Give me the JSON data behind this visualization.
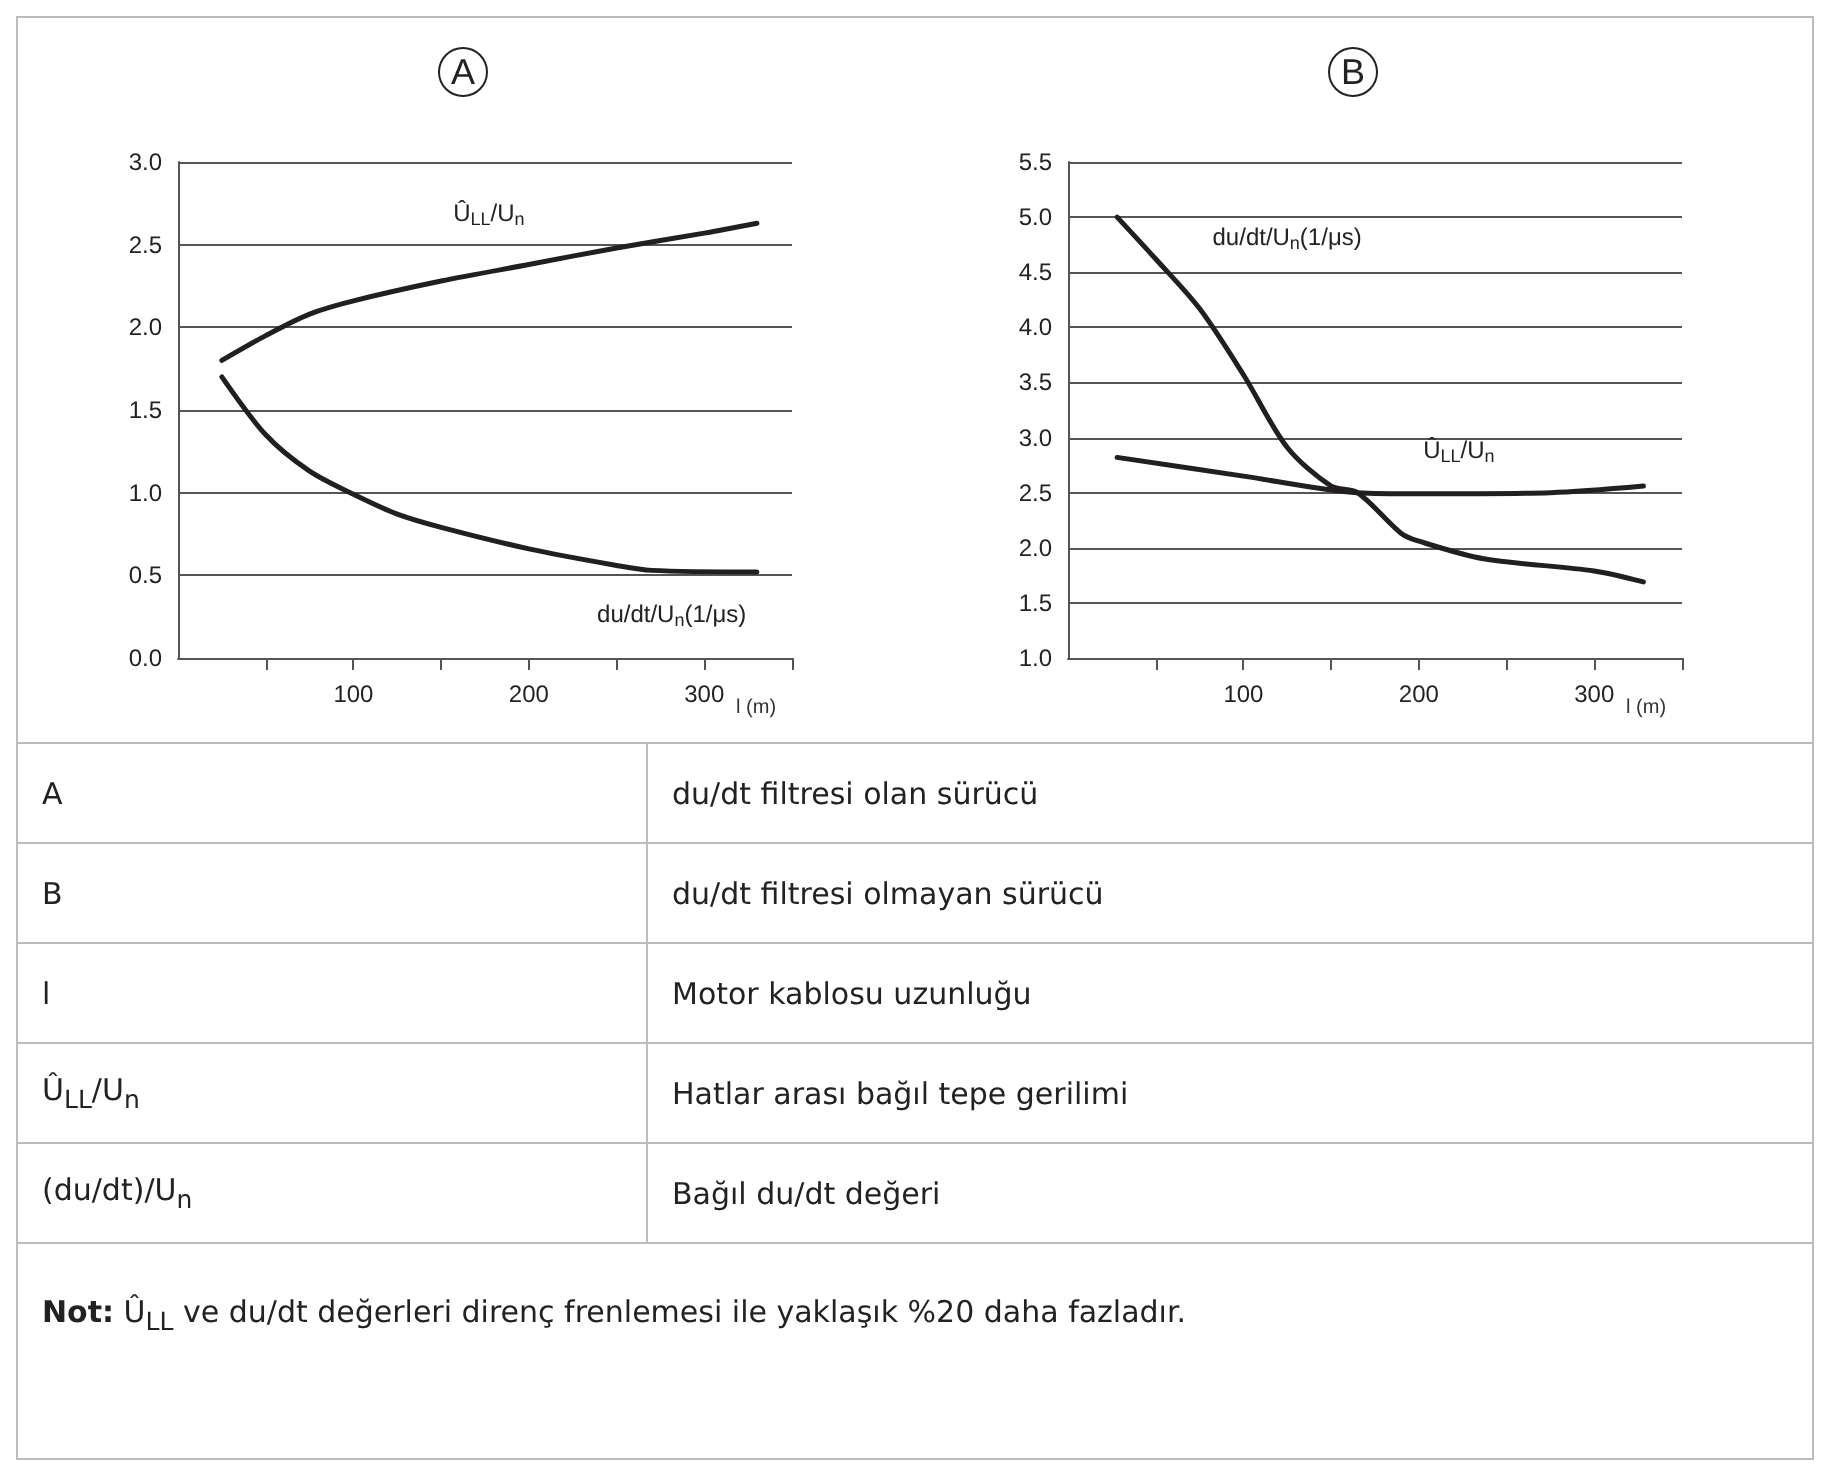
{
  "chart_data": [
    {
      "type": "line",
      "title": "A",
      "xlabel": "l (m)",
      "xlim": [
        0,
        350
      ],
      "xticks": [
        {
          "value": 50,
          "label": null
        },
        100,
        {
          "value": 150,
          "label": null
        },
        200,
        {
          "value": 250,
          "label": null
        },
        300,
        {
          "value": 350,
          "label": null
        }
      ],
      "ylim": [
        0,
        3
      ],
      "yticks": [
        {
          "value": 0,
          "label": "0.0"
        },
        {
          "value": 0.5,
          "label": "0.5"
        },
        {
          "value": 1,
          "label": "1.0"
        },
        {
          "value": 1.5,
          "label": "1.5"
        },
        {
          "value": 2,
          "label": "2.0"
        },
        {
          "value": 2.5,
          "label": "2.5"
        },
        {
          "value": 3,
          "label": "3.0"
        }
      ],
      "grid": "y",
      "marker": "none",
      "line_style": "solid",
      "series": [
        {
          "name": "Û$_{LL}$/U$_{n}$",
          "color": "#231f20",
          "x": [
            25,
            50,
            75,
            100,
            150,
            200,
            250,
            300,
            330
          ],
          "values": [
            1.8,
            1.95,
            2.08,
            2.16,
            2.28,
            2.38,
            2.48,
            2.57,
            2.63
          ]
        },
        {
          "name": "du/dt/U$_{n}$(1/μs)",
          "color": "#231f20",
          "x": [
            25,
            50,
            75,
            100,
            125,
            150,
            200,
            250,
            270,
            330
          ],
          "values": [
            1.7,
            1.35,
            1.13,
            0.99,
            0.87,
            0.79,
            0.66,
            0.56,
            0.53,
            0.52
          ]
        }
      ]
    },
    {
      "type": "line",
      "title": "B",
      "xlabel": "l (m)",
      "xlim": [
        0,
        350
      ],
      "xticks": [
        {
          "value": 50,
          "label": null
        },
        100,
        {
          "value": 150,
          "label": null
        },
        200,
        {
          "value": 250,
          "label": null
        },
        300,
        {
          "value": 350,
          "label": null
        }
      ],
      "ylim": [
        1,
        5.5
      ],
      "yticks": [
        {
          "value": 1,
          "label": "1.0"
        },
        {
          "value": 1.5,
          "label": "1.5"
        },
        {
          "value": 2,
          "label": "2.0"
        },
        {
          "value": 2.5,
          "label": "2.5"
        },
        {
          "value": 3,
          "label": "3.0"
        },
        {
          "value": 3.5,
          "label": "3.5"
        },
        {
          "value": 4,
          "label": "4.0"
        },
        {
          "value": 4.5,
          "label": "4.5"
        },
        {
          "value": 5,
          "label": "5.0"
        },
        {
          "value": 5.5,
          "label": "5.5"
        }
      ],
      "grid": "y",
      "marker": "none",
      "line_style": "solid",
      "series": [
        {
          "name": "du/dt/U$_{n}$(1/μs)",
          "color": "#231f20",
          "x": [
            28,
            50,
            75,
            100,
            125,
            150,
            165,
            190,
            200,
            237,
            300,
            328
          ],
          "values": [
            5.0,
            4.62,
            4.17,
            3.57,
            2.91,
            2.56,
            2.5,
            2.13,
            2.06,
            1.9,
            1.79,
            1.69
          ]
        },
        {
          "name": "Û$_{LL}$/U$_{n}$",
          "color": "#231f20",
          "x": [
            28,
            100,
            165,
            200,
            275,
            328
          ],
          "values": [
            2.82,
            2.65,
            2.5,
            2.49,
            2.5,
            2.56
          ]
        }
      ]
    },
    {
      "type": "other",
      "annotations": [
        "A",
        "du/dt filtresi olan sürücü",
        "B",
        "du/dt filtresi olmayan sürücü",
        "l",
        "Motor kablosu uzunluğu",
        "Û$_{LL}$/U$_{n}$",
        "Hatlar arası bağıl tepe gerilimi",
        "(du/dt)/U$_{n}$",
        "Bağıl du/dt değeri",
        "Not: Û$_{LL}$ ve du/dt değerleri direnç frenlemesi ile yaklaşık %20 daha fazladır."
      ]
    }
  ]
}
